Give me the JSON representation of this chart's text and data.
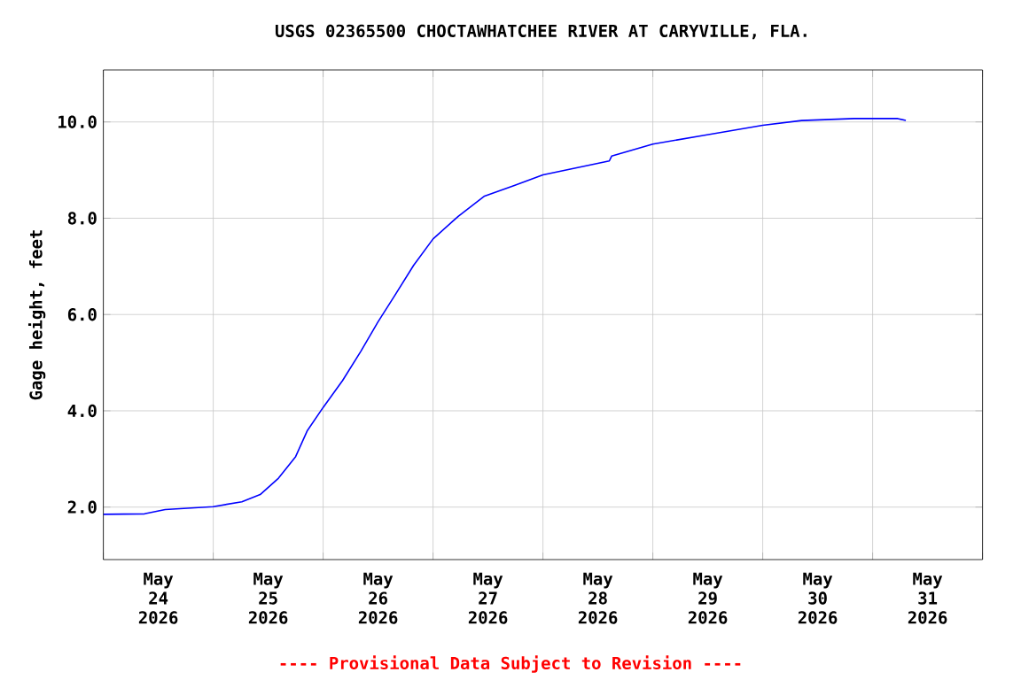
{
  "chart_data": {
    "type": "line",
    "title": "USGS 02365500 CHOCTAWHATCHEE RIVER AT CARYVILLE, FLA.",
    "ylabel": "Gage height, feet",
    "annotations": [
      "---- Provisional Data Subject to Revision ----"
    ],
    "x": [
      "2026-05-24T00:00",
      "2026-05-24T09:00",
      "2026-05-24T13:30",
      "2026-05-25T00:00",
      "2026-05-25T06:15",
      "2026-05-25T10:15",
      "2026-05-25T14:15",
      "2026-05-25T18:00",
      "2026-05-25T20:30",
      "2026-05-26T00:00",
      "2026-05-26T04:15",
      "2026-05-26T08:15",
      "2026-05-26T12:00",
      "2026-05-26T15:45",
      "2026-05-26T19:45",
      "2026-05-27T00:00",
      "2026-05-27T05:30",
      "2026-05-27T11:15",
      "2026-05-27T17:45",
      "2026-05-28T00:00",
      "2026-05-28T14:30",
      "2026-05-28T15:00",
      "2026-05-29T00:00",
      "2026-05-29T11:00",
      "2026-05-30T00:00",
      "2026-05-30T08:30",
      "2026-05-30T20:00",
      "2026-05-31T05:30",
      "2026-05-31T07:15"
    ],
    "series": [
      {
        "color": "#0000ff",
        "values": [
          1.85,
          1.86,
          1.95,
          2.01,
          2.11,
          2.26,
          2.6,
          3.05,
          3.58,
          4.07,
          4.63,
          5.24,
          5.85,
          6.41,
          7.02,
          7.57,
          8.04,
          8.46,
          8.68,
          8.9,
          9.19,
          9.29,
          9.54,
          9.72,
          9.93,
          10.03,
          10.07,
          10.07,
          10.03
        ]
      }
    ],
    "xlim": [
      "2026-05-24T00:00",
      "2026-06-01T00:00"
    ],
    "xticks": [
      {
        "value": "2026-05-24T00:00",
        "label": null
      },
      {
        "value": "2026-05-24T12:00",
        "label": "May 24 2026"
      },
      {
        "value": "2026-05-25T00:00",
        "label": null
      },
      {
        "value": "2026-05-25T12:00",
        "label": "May 25 2026"
      },
      {
        "value": "2026-05-26T00:00",
        "label": null
      },
      {
        "value": "2026-05-26T12:00",
        "label": "May 26 2026"
      },
      {
        "value": "2026-05-27T00:00",
        "label": null
      },
      {
        "value": "2026-05-27T12:00",
        "label": "May 27 2026"
      },
      {
        "value": "2026-05-28T00:00",
        "label": null
      },
      {
        "value": "2026-05-28T12:00",
        "label": "May 28 2026"
      },
      {
        "value": "2026-05-29T00:00",
        "label": null
      },
      {
        "value": "2026-05-29T12:00",
        "label": "May 29 2026"
      },
      {
        "value": "2026-05-30T00:00",
        "label": null
      },
      {
        "value": "2026-05-30T12:00",
        "label": "May 30 2026"
      },
      {
        "value": "2026-05-31T00:00",
        "label": null
      },
      {
        "value": "2026-05-31T12:00",
        "label": "May 31 2026"
      },
      {
        "value": "2026-06-01T00:00",
        "label": null
      }
    ],
    "ylim": [
      0.91,
      11.08
    ],
    "yticks": [
      {
        "value": 2,
        "label": "2.0"
      },
      {
        "value": 4,
        "label": "4.0"
      },
      {
        "value": 6,
        "label": "6.0"
      },
      {
        "value": 8,
        "label": "8.0"
      },
      {
        "value": 10,
        "label": "10.0"
      }
    ],
    "grid": true,
    "marker": "none",
    "line_style": "solid"
  }
}
